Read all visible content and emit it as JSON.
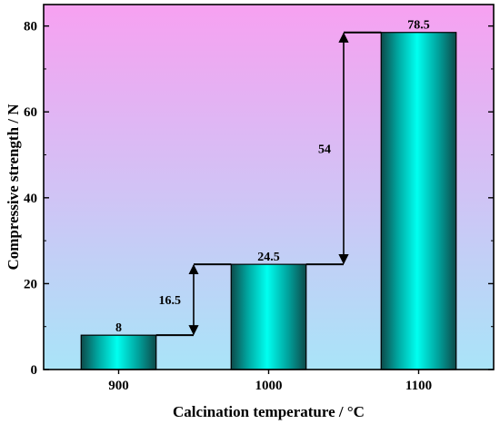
{
  "chart_data": {
    "type": "bar",
    "categories": [
      "900",
      "1000",
      "1100"
    ],
    "values": [
      8,
      24.5,
      78.5
    ],
    "data_labels": [
      "8",
      "24.5",
      "78.5"
    ],
    "xlabel": "Calcination temperature / °C",
    "ylabel": "Compressive strength / N",
    "ylim": [
      0,
      85
    ],
    "yticks": [
      0,
      20,
      40,
      60,
      80
    ],
    "grid": false,
    "legend": "none",
    "annotations": [
      {
        "from": 8,
        "to": 24.5,
        "label": "16.5"
      },
      {
        "from": 24.5,
        "to": 78.5,
        "label": "54"
      }
    ],
    "colors": {
      "background_top": "#f7a1f1",
      "background_bottom": "#a9e4f8",
      "bar_edge": "#0d4a4a",
      "bar_center": "#00fff0"
    }
  }
}
